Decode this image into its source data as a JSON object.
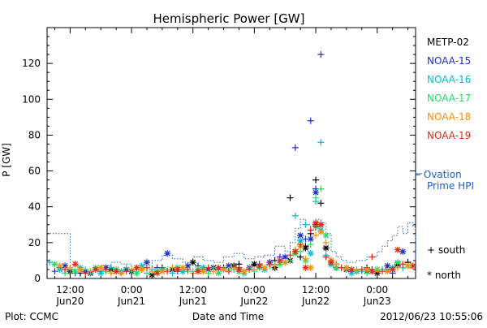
{
  "chart_data": {
    "type": "scatter",
    "title": "Hemispheric Power [GW]",
    "xlabel": "Date and Time",
    "ylabel": "P [GW]",
    "ylim": [
      0,
      140
    ],
    "yticks": [
      0,
      20,
      40,
      60,
      80,
      100,
      120
    ],
    "x_unit": "hours",
    "xlim": [
      7.5,
      79.5
    ],
    "xticks": [
      {
        "x": 12,
        "line1": "12:00",
        "line2": "Jun20"
      },
      {
        "x": 24,
        "line1": "0:00",
        "line2": "Jun21"
      },
      {
        "x": 36,
        "line1": "12:00",
        "line2": "Jun21"
      },
      {
        "x": 48,
        "line1": "0:00",
        "line2": "Jun22"
      },
      {
        "x": 60,
        "line1": "12:00",
        "line2": "Jun22"
      },
      {
        "x": 72,
        "line1": "0:00",
        "line2": "Jun23"
      }
    ],
    "footer_left": "Plot: CCMC",
    "footer_right": "2012/06/23 10:55:06",
    "legend": {
      "position": "right",
      "satellites": [
        {
          "name": "METP-02",
          "color": "#000000"
        },
        {
          "name": "NOAA-15",
          "color": "#1a2fc8"
        },
        {
          "name": "NOAA-16",
          "color": "#00bcd4"
        },
        {
          "name": "NOAA-17",
          "color": "#22dd66"
        },
        {
          "name": "NOAA-18",
          "color": "#ff8c00"
        },
        {
          "name": "NOAA-19",
          "color": "#e02a10"
        }
      ],
      "ovation_line1": "– Ovation",
      "ovation_line2": "Prime HPI",
      "ovation_color": "#1a5fd0",
      "south_label": "+ south",
      "north_label": "* north"
    },
    "ovation_series": {
      "name": "Ovation Prime HPI",
      "style": "stepped-dotted",
      "x": [
        7.5,
        12,
        14,
        16,
        18,
        20,
        22,
        24,
        26,
        28,
        30,
        32,
        34,
        36,
        38,
        40,
        42,
        44,
        46,
        48,
        50,
        52,
        54,
        55,
        56,
        57,
        58,
        59,
        60,
        61,
        62,
        63,
        64,
        65,
        66,
        68,
        70,
        72,
        73,
        74,
        75,
        76,
        77,
        78,
        79,
        79.5
      ],
      "values": [
        25,
        5,
        4,
        5,
        7,
        9,
        8,
        5,
        7,
        10,
        13,
        11,
        9,
        12,
        10,
        9,
        12,
        14,
        11,
        12,
        13,
        18,
        15,
        20,
        28,
        33,
        30,
        27,
        33,
        31,
        25,
        15,
        12,
        10,
        9,
        10,
        12,
        15,
        18,
        21,
        24,
        29,
        25,
        31,
        29,
        9
      ]
    },
    "series": [
      {
        "name": "METP-02",
        "color": "#000000",
        "south": [
          [
            10,
            6
          ],
          [
            14,
            3
          ],
          [
            18,
            4
          ],
          [
            22,
            3
          ],
          [
            26,
            5
          ],
          [
            30,
            6
          ],
          [
            34,
            4
          ],
          [
            38,
            5
          ],
          [
            42,
            6
          ],
          [
            45,
            8
          ],
          [
            48,
            7
          ],
          [
            52,
            10
          ],
          [
            55,
            45
          ],
          [
            57,
            12
          ],
          [
            58,
            18
          ],
          [
            59,
            25
          ],
          [
            60,
            55
          ],
          [
            61,
            42
          ],
          [
            62,
            17
          ],
          [
            63,
            10
          ],
          [
            64,
            8
          ],
          [
            66,
            5
          ],
          [
            70,
            6
          ],
          [
            74,
            5
          ],
          [
            76,
            7
          ],
          [
            78,
            9
          ]
        ],
        "north": [
          [
            12,
            4
          ],
          [
            16,
            3
          ],
          [
            20,
            5
          ],
          [
            24,
            4
          ],
          [
            28,
            2
          ],
          [
            32,
            5
          ],
          [
            36,
            9
          ],
          [
            40,
            6
          ],
          [
            44,
            7
          ],
          [
            48,
            8
          ],
          [
            52,
            6
          ],
          [
            55,
            10
          ],
          [
            58,
            17
          ],
          [
            60,
            30
          ],
          [
            62,
            17
          ],
          [
            64,
            6
          ],
          [
            68,
            4
          ],
          [
            72,
            3
          ],
          [
            76,
            8
          ]
        ]
      },
      {
        "name": "NOAA-15",
        "color": "#1a2fc8",
        "south": [
          [
            9,
            4
          ],
          [
            13,
            3
          ],
          [
            17,
            5
          ],
          [
            21,
            4
          ],
          [
            25,
            3
          ],
          [
            29,
            6
          ],
          [
            33,
            4
          ],
          [
            37,
            7
          ],
          [
            41,
            5
          ],
          [
            45,
            6
          ],
          [
            49,
            8
          ],
          [
            53,
            12
          ],
          [
            56,
            73
          ],
          [
            58,
            22
          ],
          [
            59,
            88
          ],
          [
            60,
            50
          ],
          [
            61,
            125
          ],
          [
            62,
            12
          ],
          [
            64,
            6
          ],
          [
            67,
            4
          ],
          [
            71,
            5
          ],
          [
            75,
            3
          ],
          [
            78,
            7
          ]
        ],
        "north": [
          [
            11,
            7
          ],
          [
            15,
            4
          ],
          [
            19,
            6
          ],
          [
            23,
            5
          ],
          [
            27,
            9
          ],
          [
            31,
            14
          ],
          [
            35,
            7
          ],
          [
            39,
            5
          ],
          [
            43,
            7
          ],
          [
            47,
            6
          ],
          [
            51,
            9
          ],
          [
            54,
            12
          ],
          [
            57,
            24
          ],
          [
            59,
            22
          ],
          [
            60,
            48
          ],
          [
            61,
            30
          ],
          [
            63,
            8
          ],
          [
            66,
            5
          ],
          [
            70,
            4
          ],
          [
            74,
            7
          ],
          [
            77,
            15
          ]
        ]
      },
      {
        "name": "NOAA-16",
        "color": "#00bcd4",
        "south": [
          [
            8,
            9
          ],
          [
            12,
            5
          ],
          [
            16,
            3
          ],
          [
            20,
            6
          ],
          [
            24,
            4
          ],
          [
            28,
            5
          ],
          [
            32,
            3
          ],
          [
            36,
            4
          ],
          [
            40,
            6
          ],
          [
            44,
            5
          ],
          [
            48,
            4
          ],
          [
            52,
            8
          ],
          [
            56,
            35
          ],
          [
            58,
            30
          ],
          [
            60,
            43
          ],
          [
            61,
            76
          ],
          [
            62,
            13
          ],
          [
            65,
            6
          ],
          [
            69,
            4
          ],
          [
            73,
            5
          ],
          [
            77,
            6
          ]
        ],
        "north": [
          [
            10,
            5
          ],
          [
            14,
            6
          ],
          [
            18,
            3
          ],
          [
            22,
            4
          ],
          [
            26,
            7
          ],
          [
            30,
            5
          ],
          [
            34,
            4
          ],
          [
            38,
            6
          ],
          [
            42,
            5
          ],
          [
            46,
            3
          ],
          [
            50,
            5
          ],
          [
            54,
            9
          ],
          [
            57,
            21
          ],
          [
            59,
            14
          ],
          [
            61,
            27
          ],
          [
            63,
            8
          ],
          [
            67,
            3
          ],
          [
            71,
            4
          ],
          [
            75,
            6
          ]
        ]
      },
      {
        "name": "NOAA-17",
        "color": "#22dd66",
        "south": [
          [
            11,
            3
          ],
          [
            15,
            5
          ],
          [
            19,
            4
          ],
          [
            23,
            6
          ],
          [
            27,
            3
          ],
          [
            31,
            5
          ],
          [
            35,
            4
          ],
          [
            39,
            3
          ],
          [
            43,
            5
          ],
          [
            47,
            6
          ],
          [
            51,
            7
          ],
          [
            55,
            10
          ],
          [
            57,
            15
          ],
          [
            59,
            19
          ],
          [
            60,
            45
          ],
          [
            61,
            50
          ],
          [
            63,
            9
          ],
          [
            66,
            5
          ],
          [
            70,
            3
          ],
          [
            74,
            4
          ]
        ],
        "north": [
          [
            9,
            8
          ],
          [
            13,
            4
          ],
          [
            17,
            6
          ],
          [
            21,
            5
          ],
          [
            25,
            3
          ],
          [
            29,
            4
          ],
          [
            33,
            6
          ],
          [
            37,
            5
          ],
          [
            41,
            3
          ],
          [
            45,
            4
          ],
          [
            49,
            6
          ],
          [
            53,
            8
          ],
          [
            56,
            14
          ],
          [
            58,
            10
          ],
          [
            60,
            29
          ],
          [
            62,
            24
          ],
          [
            64,
            6
          ],
          [
            68,
            4
          ],
          [
            72,
            5
          ],
          [
            76,
            9
          ]
        ]
      },
      {
        "name": "NOAA-18",
        "color": "#ff8c00",
        "south": [
          [
            12,
            6
          ],
          [
            16,
            4
          ],
          [
            20,
            3
          ],
          [
            24,
            5
          ],
          [
            28,
            4
          ],
          [
            32,
            6
          ],
          [
            36,
            3
          ],
          [
            40,
            4
          ],
          [
            44,
            6
          ],
          [
            48,
            5
          ],
          [
            52,
            7
          ],
          [
            56,
            16
          ],
          [
            58,
            11
          ],
          [
            60,
            24
          ],
          [
            62,
            20
          ],
          [
            64,
            8
          ],
          [
            68,
            5
          ],
          [
            72,
            4
          ],
          [
            76,
            6
          ]
        ],
        "north": [
          [
            10,
            7
          ],
          [
            14,
            5
          ],
          [
            18,
            6
          ],
          [
            22,
            3
          ],
          [
            26,
            5
          ],
          [
            30,
            4
          ],
          [
            34,
            6
          ],
          [
            38,
            4
          ],
          [
            42,
            5
          ],
          [
            46,
            4
          ],
          [
            50,
            6
          ],
          [
            54,
            9
          ],
          [
            57,
            18
          ],
          [
            59,
            6
          ],
          [
            61,
            26
          ],
          [
            63,
            10
          ],
          [
            66,
            6
          ],
          [
            70,
            5
          ],
          [
            74,
            4
          ],
          [
            78,
            7
          ]
        ]
      },
      {
        "name": "NOAA-19",
        "color": "#e02a10",
        "south": [
          [
            11,
            5
          ],
          [
            15,
            3
          ],
          [
            19,
            5
          ],
          [
            23,
            4
          ],
          [
            27,
            6
          ],
          [
            31,
            4
          ],
          [
            35,
            5
          ],
          [
            39,
            6
          ],
          [
            43,
            4
          ],
          [
            47,
            5
          ],
          [
            51,
            8
          ],
          [
            55,
            13
          ],
          [
            57,
            19
          ],
          [
            59,
            27
          ],
          [
            60,
            29
          ],
          [
            62,
            12
          ],
          [
            65,
            6
          ],
          [
            69,
            5
          ],
          [
            71,
            12
          ],
          [
            73,
            4
          ],
          [
            77,
            8
          ]
        ],
        "north": [
          [
            13,
            8
          ],
          [
            17,
            5
          ],
          [
            21,
            4
          ],
          [
            25,
            6
          ],
          [
            29,
            3
          ],
          [
            33,
            5
          ],
          [
            37,
            4
          ],
          [
            41,
            6
          ],
          [
            45,
            5
          ],
          [
            49,
            7
          ],
          [
            53,
            10
          ],
          [
            56,
            15
          ],
          [
            58,
            6
          ],
          [
            60,
            31
          ],
          [
            61,
            30
          ],
          [
            63,
            9
          ],
          [
            67,
            5
          ],
          [
            71,
            4
          ],
          [
            75,
            5
          ],
          [
            76,
            16
          ],
          [
            79,
            7
          ]
        ]
      }
    ]
  }
}
